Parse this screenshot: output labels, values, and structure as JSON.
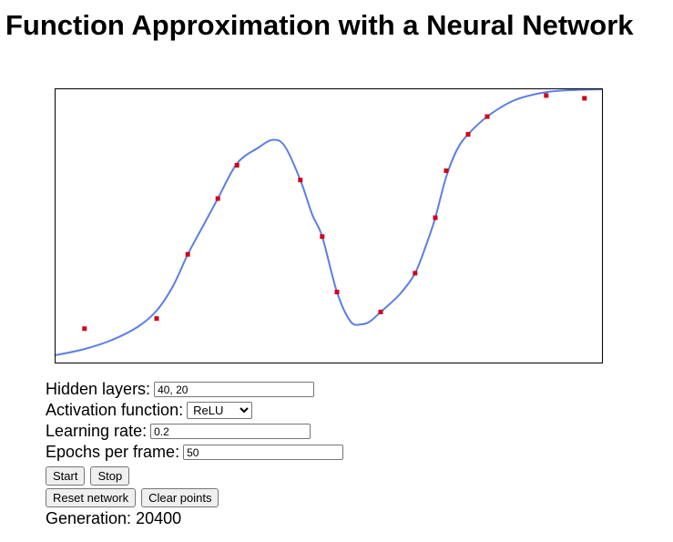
{
  "page": {
    "title": "Function Approximation with a Neural Network"
  },
  "controls": {
    "hidden_layers_label": "Hidden layers:",
    "hidden_layers_value": "40, 20",
    "activation_label": "Activation function:",
    "activation_value": "ReLU",
    "learning_rate_label": "Learning rate:",
    "learning_rate_value": "0.2",
    "epochs_label": "Epochs per frame:",
    "epochs_value": "50",
    "start_label": "Start",
    "stop_label": "Stop",
    "reset_label": "Reset network",
    "clear_label": "Clear points"
  },
  "status": {
    "generation_prefix": "Generation:",
    "generation_value": "20400"
  },
  "colors": {
    "curve": "#5b7ee5",
    "points": "#d0021b"
  },
  "chart_data": {
    "type": "scatter",
    "xlim": [
      0,
      1
    ],
    "ylim": [
      0,
      1
    ],
    "grid": false,
    "points": [
      {
        "x": 0.053,
        "y": 0.124
      },
      {
        "x": 0.185,
        "y": 0.161
      },
      {
        "x": 0.242,
        "y": 0.396
      },
      {
        "x": 0.297,
        "y": 0.6
      },
      {
        "x": 0.332,
        "y": 0.722
      },
      {
        "x": 0.448,
        "y": 0.668
      },
      {
        "x": 0.488,
        "y": 0.461
      },
      {
        "x": 0.515,
        "y": 0.258
      },
      {
        "x": 0.595,
        "y": 0.185
      },
      {
        "x": 0.658,
        "y": 0.327
      },
      {
        "x": 0.695,
        "y": 0.53
      },
      {
        "x": 0.715,
        "y": 0.702
      },
      {
        "x": 0.755,
        "y": 0.835
      },
      {
        "x": 0.79,
        "y": 0.9
      },
      {
        "x": 0.898,
        "y": 0.977
      },
      {
        "x": 0.968,
        "y": 0.967
      }
    ],
    "fit_curve": [
      {
        "x": 0.0,
        "y": 0.027
      },
      {
        "x": 0.05,
        "y": 0.048
      },
      {
        "x": 0.1,
        "y": 0.08
      },
      {
        "x": 0.15,
        "y": 0.13
      },
      {
        "x": 0.185,
        "y": 0.19
      },
      {
        "x": 0.215,
        "y": 0.28
      },
      {
        "x": 0.242,
        "y": 0.396
      },
      {
        "x": 0.27,
        "y": 0.5
      },
      {
        "x": 0.297,
        "y": 0.6
      },
      {
        "x": 0.332,
        "y": 0.728
      },
      {
        "x": 0.37,
        "y": 0.785
      },
      {
        "x": 0.398,
        "y": 0.815
      },
      {
        "x": 0.42,
        "y": 0.79
      },
      {
        "x": 0.448,
        "y": 0.668
      },
      {
        "x": 0.47,
        "y": 0.54
      },
      {
        "x": 0.488,
        "y": 0.461
      },
      {
        "x": 0.515,
        "y": 0.258
      },
      {
        "x": 0.54,
        "y": 0.15
      },
      {
        "x": 0.56,
        "y": 0.14
      },
      {
        "x": 0.575,
        "y": 0.15
      },
      {
        "x": 0.595,
        "y": 0.185
      },
      {
        "x": 0.63,
        "y": 0.25
      },
      {
        "x": 0.658,
        "y": 0.327
      },
      {
        "x": 0.68,
        "y": 0.44
      },
      {
        "x": 0.695,
        "y": 0.53
      },
      {
        "x": 0.715,
        "y": 0.68
      },
      {
        "x": 0.735,
        "y": 0.78
      },
      {
        "x": 0.755,
        "y": 0.835
      },
      {
        "x": 0.79,
        "y": 0.9
      },
      {
        "x": 0.84,
        "y": 0.96
      },
      {
        "x": 0.9,
        "y": 0.99
      },
      {
        "x": 0.96,
        "y": 0.998
      },
      {
        "x": 1.0,
        "y": 1.0
      }
    ]
  }
}
